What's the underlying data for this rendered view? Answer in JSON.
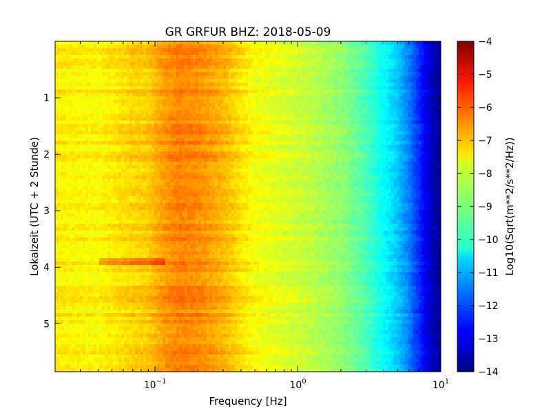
{
  "chart_data": {
    "type": "heatmap",
    "title": "GR GRFUR BHZ: 2018-05-09",
    "xlabel": "Frequency [Hz]",
    "ylabel": "Lokalzeit (UTC + 2 Stunde)",
    "x_scale": "log",
    "xlim": [
      0.02,
      10
    ],
    "ylim": [
      5.85,
      0
    ],
    "x_ticks": [
      {
        "value": 0.1,
        "base": "10",
        "exp": "−1"
      },
      {
        "value": 1,
        "base": "10",
        "exp": "0"
      },
      {
        "value": 10,
        "base": "10",
        "exp": "1"
      }
    ],
    "y_ticks": [
      {
        "value": 1,
        "label": "1"
      },
      {
        "value": 2,
        "label": "2"
      },
      {
        "value": 3,
        "label": "3"
      },
      {
        "value": 4,
        "label": "4"
      },
      {
        "value": 5,
        "label": "5"
      }
    ],
    "colorbar": {
      "label": "Log10(Sqrt(m**2/s**2/Hz))",
      "colormap": "jet",
      "range": [
        -14,
        -4
      ],
      "ticks": [
        {
          "value": -4,
          "label": "−4"
        },
        {
          "value": -5,
          "label": "−5"
        },
        {
          "value": -6,
          "label": "−6"
        },
        {
          "value": -7,
          "label": "−7"
        },
        {
          "value": -8,
          "label": "−8"
        },
        {
          "value": -9,
          "label": "−9"
        },
        {
          "value": -10,
          "label": "−10"
        },
        {
          "value": -11,
          "label": "−11"
        },
        {
          "value": -12,
          "label": "−12"
        },
        {
          "value": -13,
          "label": "−13"
        },
        {
          "value": -14,
          "label": "−14"
        }
      ]
    },
    "frequency_profile": [
      {
        "freq": 0.02,
        "value": -7.6
      },
      {
        "freq": 0.04,
        "value": -7.7
      },
      {
        "freq": 0.06,
        "value": -7.4
      },
      {
        "freq": 0.09,
        "value": -7.2
      },
      {
        "freq": 0.12,
        "value": -6.7
      },
      {
        "freq": 0.15,
        "value": -6.5
      },
      {
        "freq": 0.2,
        "value": -6.6
      },
      {
        "freq": 0.3,
        "value": -7.0
      },
      {
        "freq": 0.5,
        "value": -7.8
      },
      {
        "freq": 1.0,
        "value": -8.2
      },
      {
        "freq": 2.0,
        "value": -8.8
      },
      {
        "freq": 3.0,
        "value": -9.5
      },
      {
        "freq": 4.0,
        "value": -10.2
      },
      {
        "freq": 5.0,
        "value": -10.8
      },
      {
        "freq": 6.0,
        "value": -11.5
      },
      {
        "freq": 7.0,
        "value": -12.3
      },
      {
        "freq": 8.0,
        "value": -13.0
      },
      {
        "freq": 9.0,
        "value": -13.5
      },
      {
        "freq": 10.0,
        "value": -13.7
      }
    ]
  }
}
